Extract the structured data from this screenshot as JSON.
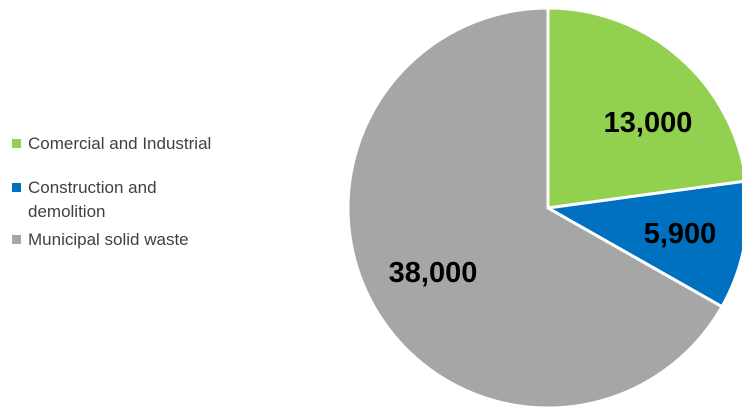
{
  "chart_data": {
    "type": "pie",
    "title": "",
    "legend_position": "left",
    "start_angle_deg": 0,
    "direction": "clockwise",
    "slices": [
      {
        "label": "Comercial and Industrial",
        "value": 13000,
        "display": "13,000",
        "color": "#92d050"
      },
      {
        "label": "Construction and demolition",
        "value": 5900,
        "display": "5,900",
        "color": "#0070c0"
      },
      {
        "label": "Municipal solid waste",
        "value": 38000,
        "display": "38,000",
        "color": "#a6a6a6"
      }
    ]
  }
}
